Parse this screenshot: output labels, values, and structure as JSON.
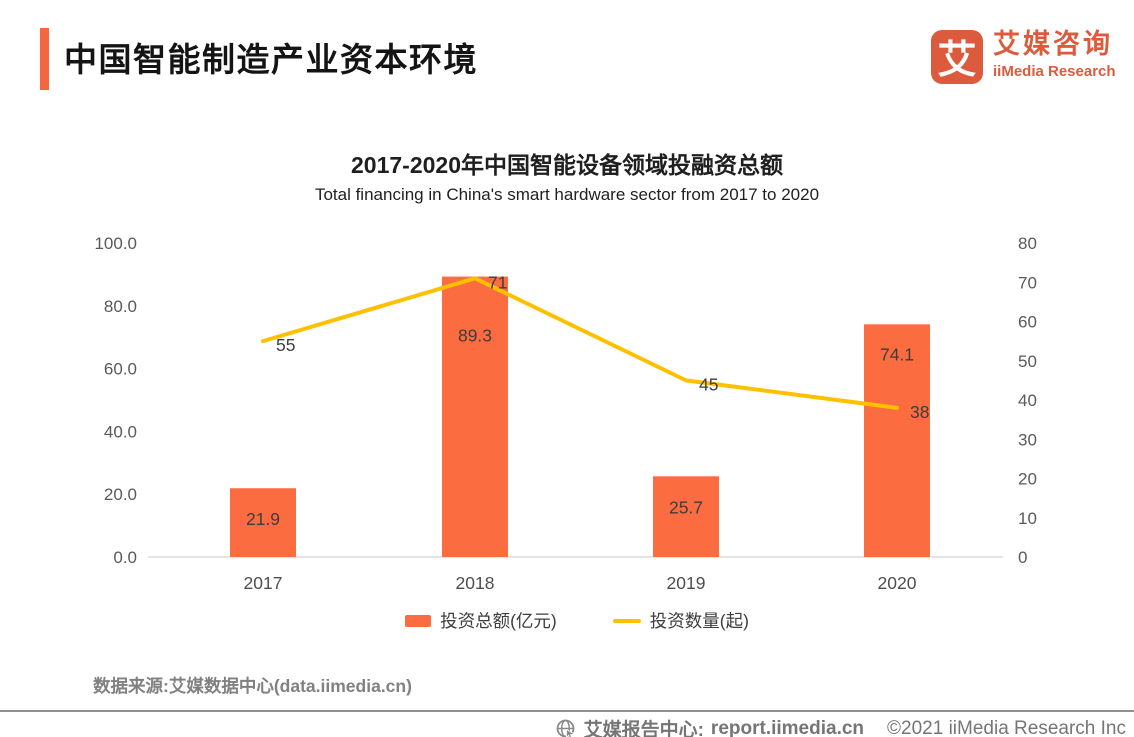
{
  "header": {
    "title": "中国智能制造产业资本环境",
    "accent_color": "#F4663D"
  },
  "logo": {
    "mark_char": "艾",
    "name_cn": "艾媒咨询",
    "name_en": "iiMedia Research",
    "brand_color": "#DC5B3C"
  },
  "chart_data": {
    "type": "bar+line",
    "title": "2017-2020年中国智能设备领域投融资总额",
    "subtitle": "Total financing in China's smart hardware sector from 2017 to 2020",
    "categories": [
      "2017",
      "2018",
      "2019",
      "2020"
    ],
    "series": [
      {
        "name": "投资总额(亿元)",
        "type": "bar",
        "axis": "left",
        "color": "#FB6C40",
        "values": [
          21.9,
          89.3,
          25.7,
          74.1
        ]
      },
      {
        "name": "投资数量(起)",
        "type": "line",
        "axis": "right",
        "color": "#FFC000",
        "values": [
          55,
          71,
          45,
          38
        ]
      }
    ],
    "left_axis": {
      "min": 0,
      "max": 100,
      "ticks": [
        "0.0",
        "20.0",
        "40.0",
        "60.0",
        "80.0",
        "100.0"
      ]
    },
    "right_axis": {
      "min": 0,
      "max": 80,
      "ticks": [
        "0",
        "10",
        "20",
        "30",
        "40",
        "50",
        "60",
        "70",
        "80"
      ]
    },
    "grid": false,
    "legend_position": "bottom"
  },
  "source": {
    "text": "数据来源:艾媒数据中心(data.iimedia.cn)"
  },
  "footer": {
    "icon": "globe-cursor-icon",
    "site_label": "艾媒报告中心:",
    "site_url": "report.iimedia.cn",
    "copyright": "©2021  iiMedia Research Inc"
  }
}
